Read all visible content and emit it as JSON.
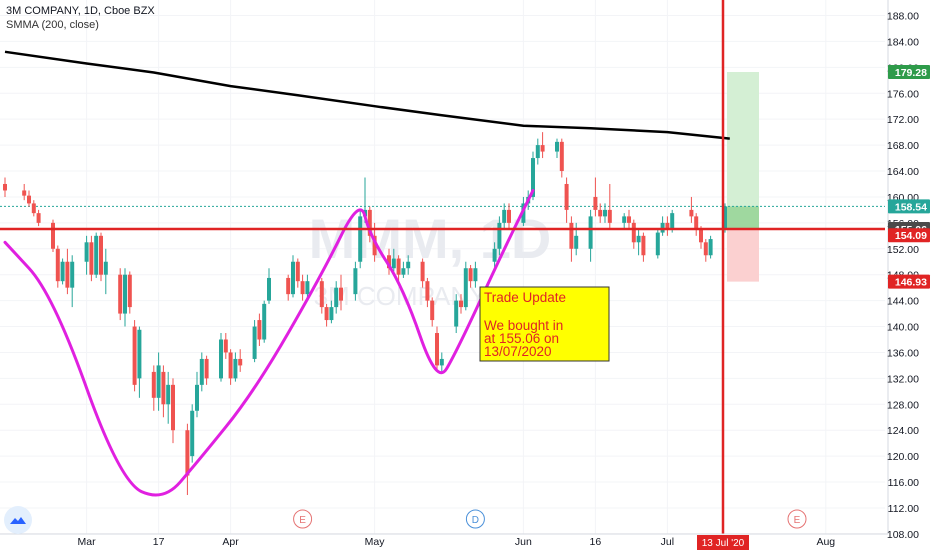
{
  "header": {
    "symbol_line": "3M COMPANY, 1D, Cboe BZX",
    "indicator_line": "SMMA (200, close)"
  },
  "watermark": {
    "ticker": "MMM, 1D",
    "name": "3M COMPANY"
  },
  "annotation": {
    "title": "Trade Update",
    "body_lines": [
      "We bought in",
      "at 155.06 on",
      "13/07/2020"
    ]
  },
  "price_labels": [
    {
      "value": "179.28",
      "price": 179.28,
      "color": "#2e9b4a"
    },
    {
      "value": "158.54",
      "price": 158.54,
      "color": "#26a69a"
    },
    {
      "value": "155.06",
      "price": 155.06,
      "color": "#4a4a4a"
    },
    {
      "value": "154.09",
      "price": 154.09,
      "color": "#e02424"
    },
    {
      "value": "146.93",
      "price": 146.93,
      "color": "#e02424"
    }
  ],
  "date_marker": "13 Jul '20",
  "event_badges": [
    {
      "label": "E",
      "date_index": 62,
      "color": "#e57373"
    },
    {
      "label": "D",
      "date_index": 98,
      "color": "#4a90d9"
    },
    {
      "label": "E",
      "date_index": 165,
      "color": "#e57373"
    }
  ],
  "colors": {
    "up": "#26a69a",
    "down": "#ef5350",
    "smma": "#000000",
    "pattern": "#e020e0",
    "hline": "#e02424",
    "vline": "#e02424"
  },
  "chart_data": {
    "type": "candlestick",
    "title": "3M COMPANY, 1D, Cboe BZX",
    "y_axis": {
      "ticks": [
        "188.00",
        "184.00",
        "180.00",
        "176.00",
        "172.00",
        "168.00",
        "164.00",
        "160.00",
        "156.00",
        "152.00",
        "148.00",
        "144.00",
        "140.00",
        "136.00",
        "132.00",
        "128.00",
        "124.00",
        "120.00",
        "116.00",
        "112.00",
        "108.00"
      ],
      "range": [
        107,
        190
      ]
    },
    "x_axis": {
      "ticks": [
        "Mar",
        "17",
        "Apr",
        "May",
        "Jun",
        "16",
        "Jul",
        "Aug"
      ],
      "date_range": [
        "2020-02-14",
        "2020-08-03"
      ]
    },
    "smma_200": {
      "dates": [
        "2020-02-14",
        "2020-03-02",
        "2020-03-16",
        "2020-04-01",
        "2020-04-15",
        "2020-05-01",
        "2020-05-15",
        "2020-06-01",
        "2020-06-15",
        "2020-07-01",
        "2020-07-14"
      ],
      "values": [
        182.4,
        180.6,
        179.2,
        177.1,
        175.7,
        174.0,
        172.6,
        171.0,
        170.6,
        170.0,
        169.0
      ]
    },
    "horizontal_line": 155.06,
    "vertical_line_date": "2020-07-13",
    "trade": {
      "entry": 155.06,
      "target": 179.28,
      "stop": 146.93,
      "last": 158.54,
      "entry_date": "2020-07-13"
    },
    "candles": [
      {
        "d": "2020-02-14",
        "o": 162.0,
        "h": 163.0,
        "c": 161.0,
        "l": 160.0
      },
      {
        "d": "2020-02-18",
        "o": 161.0,
        "h": 162.0,
        "c": 160.2,
        "l": 159.5
      },
      {
        "d": "2020-02-19",
        "o": 160.2,
        "h": 161.0,
        "c": 159.0,
        "l": 158.5
      },
      {
        "d": "2020-02-20",
        "o": 159.0,
        "h": 159.5,
        "c": 157.5,
        "l": 157.0
      },
      {
        "d": "2020-02-21",
        "o": 157.5,
        "h": 158.0,
        "c": 156.0,
        "l": 155.5
      },
      {
        "d": "2020-02-24",
        "o": 156.0,
        "h": 156.5,
        "c": 152.0,
        "l": 151.5
      },
      {
        "d": "2020-02-25",
        "o": 152.0,
        "h": 152.5,
        "c": 147.0,
        "l": 146.0
      },
      {
        "d": "2020-02-26",
        "o": 147.0,
        "h": 150.5,
        "c": 150.0,
        "l": 146.5
      },
      {
        "d": "2020-02-27",
        "o": 150.0,
        "h": 152.0,
        "c": 146.0,
        "l": 145.0
      },
      {
        "d": "2020-02-28",
        "o": 146.0,
        "h": 151.0,
        "c": 150.0,
        "l": 143.0
      },
      {
        "d": "2020-03-02",
        "o": 150.0,
        "h": 154.0,
        "c": 153.0,
        "l": 148.0
      },
      {
        "d": "2020-03-03",
        "o": 153.0,
        "h": 154.0,
        "c": 148.0,
        "l": 147.0
      },
      {
        "d": "2020-03-04",
        "o": 148.0,
        "h": 154.5,
        "c": 154.0,
        "l": 147.5
      },
      {
        "d": "2020-03-05",
        "o": 154.0,
        "h": 154.5,
        "c": 148.0,
        "l": 147.0
      },
      {
        "d": "2020-03-06",
        "o": 148.0,
        "h": 152.0,
        "c": 150.0,
        "l": 145.0
      },
      {
        "d": "2020-03-09",
        "o": 148.0,
        "h": 149.0,
        "c": 142.0,
        "l": 141.0
      },
      {
        "d": "2020-03-10",
        "o": 142.0,
        "h": 149.0,
        "c": 148.0,
        "l": 140.0
      },
      {
        "d": "2020-03-11",
        "o": 148.0,
        "h": 148.5,
        "c": 143.0,
        "l": 142.0
      },
      {
        "d": "2020-03-12",
        "o": 140.0,
        "h": 141.0,
        "c": 131.0,
        "l": 130.0
      },
      {
        "d": "2020-03-13",
        "o": 132.0,
        "h": 140.0,
        "c": 139.5,
        "l": 129.0
      },
      {
        "d": "2020-03-16",
        "o": 133.0,
        "h": 134.0,
        "c": 129.0,
        "l": 127.0
      },
      {
        "d": "2020-03-17",
        "o": 129.0,
        "h": 136.0,
        "c": 134.0,
        "l": 127.0
      },
      {
        "d": "2020-03-18",
        "o": 133.0,
        "h": 134.0,
        "c": 128.0,
        "l": 126.0
      },
      {
        "d": "2020-03-19",
        "o": 128.0,
        "h": 133.0,
        "c": 131.0,
        "l": 125.0
      },
      {
        "d": "2020-03-20",
        "o": 131.0,
        "h": 132.0,
        "c": 124.0,
        "l": 122.0
      },
      {
        "d": "2020-03-23",
        "o": 124.0,
        "h": 125.0,
        "c": 117.0,
        "l": 114.0
      },
      {
        "d": "2020-03-24",
        "o": 120.0,
        "h": 128.0,
        "c": 127.0,
        "l": 119.0
      },
      {
        "d": "2020-03-25",
        "o": 127.0,
        "h": 133.0,
        "c": 131.0,
        "l": 126.0
      },
      {
        "d": "2020-03-26",
        "o": 131.0,
        "h": 136.0,
        "c": 135.0,
        "l": 130.0
      },
      {
        "d": "2020-03-27",
        "o": 135.0,
        "h": 135.5,
        "c": 132.0,
        "l": 131.0
      },
      {
        "d": "2020-03-30",
        "o": 132.0,
        "h": 139.0,
        "c": 138.0,
        "l": 131.5
      },
      {
        "d": "2020-03-31",
        "o": 138.0,
        "h": 139.0,
        "c": 136.0,
        "l": 135.0
      },
      {
        "d": "2020-04-01",
        "o": 136.0,
        "h": 136.5,
        "c": 132.0,
        "l": 131.0
      },
      {
        "d": "2020-04-02",
        "o": 132.0,
        "h": 136.0,
        "c": 135.0,
        "l": 131.5
      },
      {
        "d": "2020-04-03",
        "o": 135.0,
        "h": 136.5,
        "c": 134.0,
        "l": 133.0
      },
      {
        "d": "2020-04-06",
        "o": 135.0,
        "h": 141.0,
        "c": 140.0,
        "l": 134.5
      },
      {
        "d": "2020-04-07",
        "o": 141.0,
        "h": 142.0,
        "c": 138.0,
        "l": 137.0
      },
      {
        "d": "2020-04-08",
        "o": 138.0,
        "h": 144.0,
        "c": 143.5,
        "l": 137.5
      },
      {
        "d": "2020-04-09",
        "o": 144.0,
        "h": 149.0,
        "c": 147.5,
        "l": 143.5
      },
      {
        "d": "2020-04-13",
        "o": 147.5,
        "h": 148.0,
        "c": 145.0,
        "l": 144.0
      },
      {
        "d": "2020-04-14",
        "o": 145.0,
        "h": 151.0,
        "c": 150.0,
        "l": 144.5
      },
      {
        "d": "2020-04-15",
        "o": 150.0,
        "h": 150.5,
        "c": 147.0,
        "l": 146.0
      },
      {
        "d": "2020-04-16",
        "o": 147.0,
        "h": 148.0,
        "c": 145.0,
        "l": 144.0
      },
      {
        "d": "2020-04-17",
        "o": 145.0,
        "h": 148.0,
        "c": 147.0,
        "l": 144.0
      },
      {
        "d": "2020-04-20",
        "o": 147.0,
        "h": 147.5,
        "c": 143.0,
        "l": 142.0
      },
      {
        "d": "2020-04-21",
        "o": 143.0,
        "h": 143.5,
        "c": 141.0,
        "l": 140.0
      },
      {
        "d": "2020-04-22",
        "o": 141.0,
        "h": 144.0,
        "c": 143.0,
        "l": 140.5
      },
      {
        "d": "2020-04-23",
        "o": 143.0,
        "h": 147.0,
        "c": 146.0,
        "l": 142.0
      },
      {
        "d": "2020-04-24",
        "o": 146.0,
        "h": 148.0,
        "c": 144.0,
        "l": 142.5
      },
      {
        "d": "2020-04-27",
        "o": 145.0,
        "h": 150.0,
        "c": 149.0,
        "l": 144.0
      },
      {
        "d": "2020-04-28",
        "o": 150.0,
        "h": 158.0,
        "c": 157.0,
        "l": 149.0
      },
      {
        "d": "2020-04-29",
        "o": 157.0,
        "h": 163.0,
        "c": 158.0,
        "l": 156.0
      },
      {
        "d": "2020-04-30",
        "o": 158.0,
        "h": 158.5,
        "c": 154.0,
        "l": 153.0
      },
      {
        "d": "2020-05-01",
        "o": 154.0,
        "h": 156.0,
        "c": 151.0,
        "l": 150.0
      },
      {
        "d": "2020-05-04",
        "o": 151.0,
        "h": 152.0,
        "c": 149.0,
        "l": 148.0
      },
      {
        "d": "2020-05-05",
        "o": 149.0,
        "h": 152.0,
        "c": 150.5,
        "l": 148.5
      },
      {
        "d": "2020-05-06",
        "o": 150.5,
        "h": 151.0,
        "c": 148.0,
        "l": 147.0
      },
      {
        "d": "2020-05-07",
        "o": 148.0,
        "h": 150.0,
        "c": 149.0,
        "l": 147.5
      },
      {
        "d": "2020-05-08",
        "o": 149.0,
        "h": 151.0,
        "c": 150.0,
        "l": 148.0
      },
      {
        "d": "2020-05-11",
        "o": 150.0,
        "h": 150.5,
        "c": 147.0,
        "l": 146.0
      },
      {
        "d": "2020-05-12",
        "o": 147.0,
        "h": 147.5,
        "c": 144.0,
        "l": 143.0
      },
      {
        "d": "2020-05-13",
        "o": 144.0,
        "h": 144.5,
        "c": 141.0,
        "l": 140.0
      },
      {
        "d": "2020-05-14",
        "o": 139.0,
        "h": 140.0,
        "c": 134.0,
        "l": 133.0
      },
      {
        "d": "2020-05-15",
        "o": 134.0,
        "h": 136.0,
        "c": 135.0,
        "l": 133.0
      },
      {
        "d": "2020-05-18",
        "o": 140.0,
        "h": 145.0,
        "c": 144.0,
        "l": 139.0
      },
      {
        "d": "2020-05-19",
        "o": 144.0,
        "h": 145.0,
        "c": 143.0,
        "l": 142.0
      },
      {
        "d": "2020-05-20",
        "o": 143.0,
        "h": 150.0,
        "c": 149.0,
        "l": 142.5
      },
      {
        "d": "2020-05-21",
        "o": 149.0,
        "h": 149.5,
        "c": 147.0,
        "l": 146.0
      },
      {
        "d": "2020-05-22",
        "o": 147.0,
        "h": 150.0,
        "c": 149.0,
        "l": 146.0
      },
      {
        "d": "2020-05-26",
        "o": 150.0,
        "h": 153.0,
        "c": 152.0,
        "l": 149.0
      },
      {
        "d": "2020-05-27",
        "o": 152.0,
        "h": 157.0,
        "c": 156.0,
        "l": 151.0
      },
      {
        "d": "2020-05-28",
        "o": 156.0,
        "h": 159.0,
        "c": 158.0,
        "l": 155.0
      },
      {
        "d": "2020-05-29",
        "o": 158.0,
        "h": 159.0,
        "c": 156.0,
        "l": 155.0
      },
      {
        "d": "2020-06-01",
        "o": 156.0,
        "h": 160.0,
        "c": 159.0,
        "l": 155.5
      },
      {
        "d": "2020-06-02",
        "o": 159.0,
        "h": 161.0,
        "c": 160.0,
        "l": 158.0
      },
      {
        "d": "2020-06-03",
        "o": 160.0,
        "h": 167.0,
        "c": 166.0,
        "l": 159.5
      },
      {
        "d": "2020-06-04",
        "o": 166.0,
        "h": 169.0,
        "c": 168.0,
        "l": 165.0
      },
      {
        "d": "2020-06-05",
        "o": 168.0,
        "h": 170.0,
        "c": 167.0,
        "l": 166.0
      },
      {
        "d": "2020-06-08",
        "o": 167.0,
        "h": 169.0,
        "c": 168.5,
        "l": 166.0
      },
      {
        "d": "2020-06-09",
        "o": 168.5,
        "h": 169.0,
        "c": 164.0,
        "l": 163.0
      },
      {
        "d": "2020-06-10",
        "o": 162.0,
        "h": 163.0,
        "c": 158.0,
        "l": 156.0
      },
      {
        "d": "2020-06-11",
        "o": 156.0,
        "h": 157.0,
        "c": 152.0,
        "l": 150.0
      },
      {
        "d": "2020-06-12",
        "o": 152.0,
        "h": 156.0,
        "c": 154.0,
        "l": 151.0
      },
      {
        "d": "2020-06-15",
        "o": 152.0,
        "h": 158.0,
        "c": 157.0,
        "l": 150.0
      },
      {
        "d": "2020-06-16",
        "o": 160.0,
        "h": 163.0,
        "c": 158.0,
        "l": 157.0
      },
      {
        "d": "2020-06-17",
        "o": 158.0,
        "h": 159.0,
        "c": 157.0,
        "l": 156.0
      },
      {
        "d": "2020-06-18",
        "o": 157.0,
        "h": 159.0,
        "c": 158.0,
        "l": 156.0
      },
      {
        "d": "2020-06-19",
        "o": 158.0,
        "h": 162.0,
        "c": 156.0,
        "l": 155.0
      },
      {
        "d": "2020-06-22",
        "o": 156.0,
        "h": 157.5,
        "c": 157.0,
        "l": 155.0
      },
      {
        "d": "2020-06-23",
        "o": 157.0,
        "h": 158.0,
        "c": 156.0,
        "l": 155.0
      },
      {
        "d": "2020-06-24",
        "o": 156.0,
        "h": 156.5,
        "c": 153.0,
        "l": 152.0
      },
      {
        "d": "2020-06-25",
        "o": 153.0,
        "h": 155.0,
        "c": 154.0,
        "l": 151.0
      },
      {
        "d": "2020-06-26",
        "o": 154.0,
        "h": 154.5,
        "c": 151.0,
        "l": 150.0
      },
      {
        "d": "2020-06-29",
        "o": 151.0,
        "h": 155.0,
        "c": 154.5,
        "l": 150.5
      },
      {
        "d": "2020-06-30",
        "o": 154.5,
        "h": 157.0,
        "c": 156.0,
        "l": 154.0
      },
      {
        "d": "2020-07-01",
        "o": 156.0,
        "h": 157.0,
        "c": 155.0,
        "l": 154.0
      },
      {
        "d": "2020-07-02",
        "o": 155.0,
        "h": 158.0,
        "c": 157.5,
        "l": 154.5
      },
      {
        "d": "2020-07-06",
        "o": 158.0,
        "h": 160.0,
        "c": 157.0,
        "l": 156.0
      },
      {
        "d": "2020-07-07",
        "o": 157.0,
        "h": 157.5,
        "c": 155.0,
        "l": 154.0
      },
      {
        "d": "2020-07-08",
        "o": 155.0,
        "h": 155.5,
        "c": 153.0,
        "l": 152.0
      },
      {
        "d": "2020-07-09",
        "o": 153.0,
        "h": 153.5,
        "c": 151.0,
        "l": 150.0
      },
      {
        "d": "2020-07-10",
        "o": 151.0,
        "h": 154.0,
        "c": 153.5,
        "l": 150.5
      },
      {
        "d": "2020-07-13",
        "o": 155.0,
        "h": 159.0,
        "c": 158.54,
        "l": 154.5
      }
    ],
    "pattern_line": {
      "dates": [
        "2020-02-14",
        "2020-02-24",
        "2020-03-09",
        "2020-03-18",
        "2020-03-25",
        "2020-04-06",
        "2020-04-20",
        "2020-04-28",
        "2020-04-30",
        "2020-05-07",
        "2020-05-14",
        "2020-05-18",
        "2020-05-28",
        "2020-06-03"
      ],
      "prices": [
        153.0,
        145.0,
        116.0,
        113.0,
        119.0,
        130.0,
        148.0,
        160.0,
        154.0,
        146.0,
        131.0,
        136.0,
        152.0,
        161.0
      ]
    }
  }
}
